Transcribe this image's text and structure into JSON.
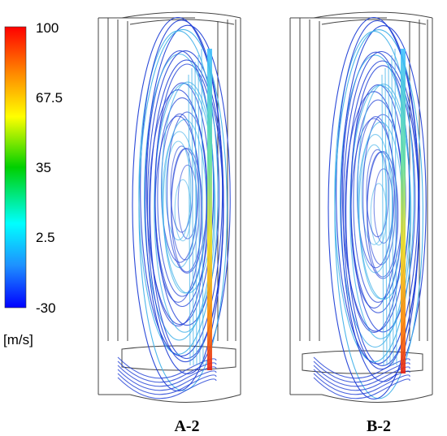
{
  "colorbar": {
    "ticks": [
      "100",
      "67.5",
      "35",
      "2.5",
      "-30"
    ],
    "unit": "[m/s]",
    "gradient": [
      "#ff0000",
      "#ff8c00",
      "#ffff00",
      "#00d000",
      "#00ffff",
      "#1e90ff",
      "#0000ff"
    ]
  },
  "panels": [
    {
      "label": "A-2"
    },
    {
      "label": "B-2"
    }
  ],
  "colors": {
    "outline": "#444444",
    "streamline_main": "#1f3fd6",
    "streamline_light": "#3fb0e8",
    "jet_mid": "#f0e020",
    "jet_hot": "#e82010"
  }
}
